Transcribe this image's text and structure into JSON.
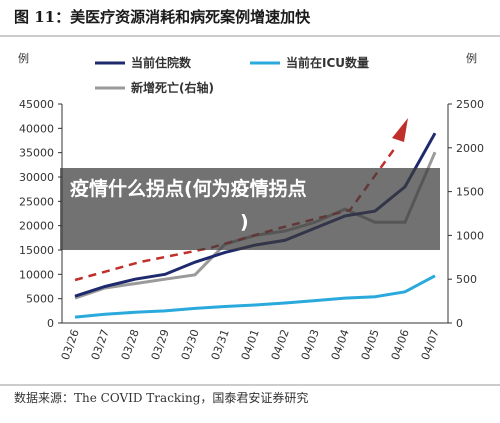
{
  "chart_data": {
    "type": "line",
    "title": "图 11：美医疗资源消耗和病死案例增速加快",
    "y_label": "例",
    "y2_label": "例",
    "categories": [
      "03/26",
      "03/27",
      "03/28",
      "03/29",
      "03/30",
      "03/31",
      "04/01",
      "04/02",
      "04/03",
      "04/04",
      "04/05",
      "04/06",
      "04/07"
    ],
    "series": [
      {
        "name": "当前住院数",
        "color": "#1f2a6e",
        "values": [
          5500,
          7500,
          9000,
          10000,
          12500,
          14500,
          16000,
          17000,
          19500,
          22000,
          23000,
          28000,
          39000
        ]
      },
      {
        "name": "当前在ICU数量",
        "color": "#2aa9dc",
        "values": [
          1200,
          1800,
          2200,
          2500,
          3000,
          3400,
          3700,
          4100,
          4600,
          5100,
          5400,
          6400,
          9700
        ]
      },
      {
        "name": "新增死亡(右轴)",
        "color": "#9a9a9a",
        "axis": "y2",
        "values": [
          285,
          400,
          450,
          500,
          550,
          900,
          1000,
          1050,
          1150,
          1300,
          1150,
          1150,
          1950
        ]
      }
    ],
    "ylim": [
      0,
      45000
    ],
    "yticks": [
      0,
      5000,
      10000,
      15000,
      20000,
      25000,
      30000,
      35000,
      40000,
      45000
    ],
    "y2lim": [
      0,
      2500
    ],
    "y2ticks": [
      0,
      500,
      1000,
      1500,
      2000,
      2500
    ],
    "overlay": {
      "line1": "疫情什么拐点(何为疫情拐点",
      "line2": ")"
    },
    "source": "数据来源：The COVID Tracking，国泰君安证券研究"
  }
}
